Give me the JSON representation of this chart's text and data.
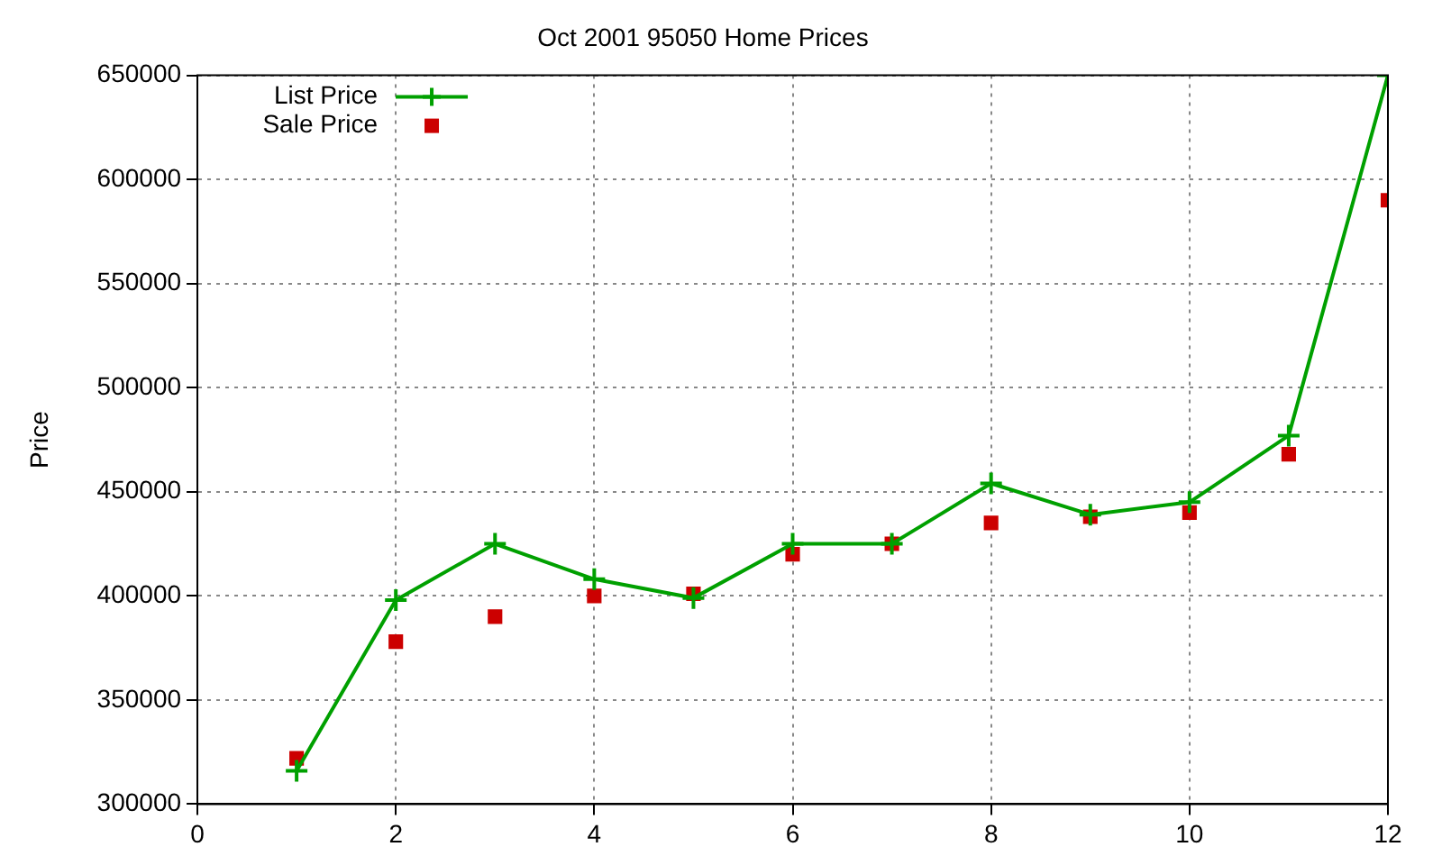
{
  "chart_data": {
    "type": "line",
    "title": "Oct 2001 95050 Home Prices",
    "ylabel": "Price",
    "x": [
      1,
      2,
      3,
      4,
      5,
      6,
      7,
      8,
      9,
      10,
      11,
      12
    ],
    "series": [
      {
        "name": "List Price",
        "color": "#00a000",
        "marker": "cross",
        "values": [
          316000,
          398000,
          425000,
          408000,
          399000,
          425000,
          425000,
          454000,
          439000,
          445000,
          477000,
          650000
        ]
      },
      {
        "name": "Sale Price",
        "type": "scatter",
        "color": "#cc0000",
        "marker": "square",
        "values": [
          322000,
          378000,
          390000,
          400000,
          401000,
          420000,
          425000,
          435000,
          438000,
          440000,
          468000,
          590000
        ]
      }
    ],
    "xlim": [
      0,
      12
    ],
    "xticks": [
      0,
      2,
      4,
      6,
      8,
      10,
      12
    ],
    "ylim": [
      300000,
      650000
    ],
    "yticks": [
      300000,
      350000,
      400000,
      450000,
      500000,
      550000,
      600000,
      650000
    ],
    "grid": true,
    "legend": "top left"
  }
}
